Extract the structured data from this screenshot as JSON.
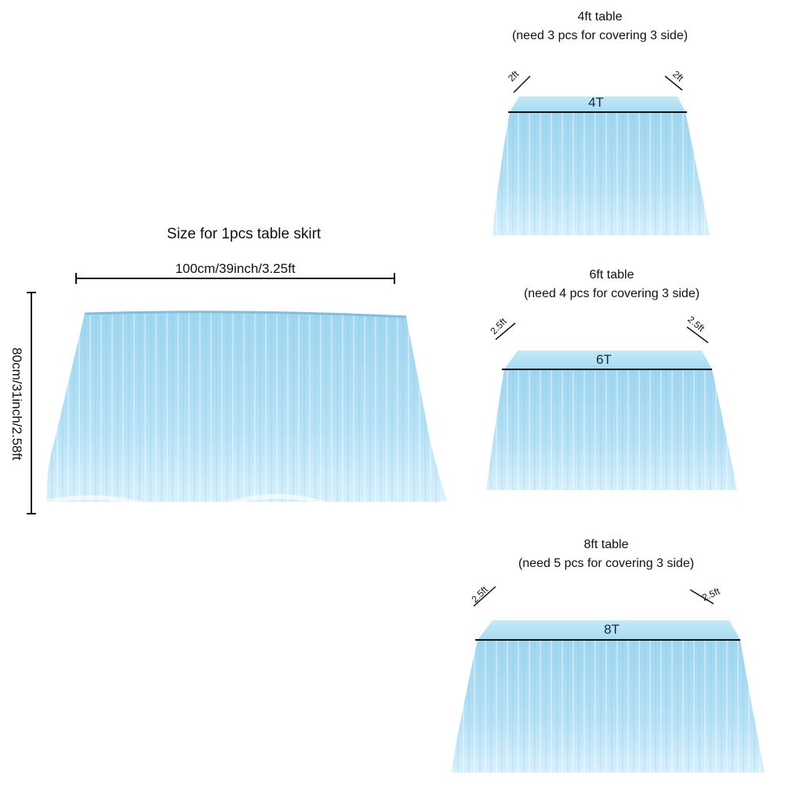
{
  "main": {
    "title": "Size for 1pcs table skirt",
    "width_label": "100cm/39inch/3.25ft",
    "height_label": "80cm/31inch/2.58ft"
  },
  "tables": [
    {
      "title": "4ft table",
      "subtitle": "(need 3 pcs for covering 3 side)",
      "top_label": "4T",
      "left_side": "2ft",
      "right_side": "2ft"
    },
    {
      "title": "6ft table",
      "subtitle": "(need 4 pcs for covering 3 side)",
      "top_label": "6T",
      "left_side": "2.5ft",
      "right_side": "2.5ft"
    },
    {
      "title": "8ft table",
      "subtitle": "(need 5 pcs for covering 3 side)",
      "top_label": "8T",
      "left_side": "2.5ft",
      "right_side": "2.5ft"
    }
  ],
  "colors": {
    "tulle": "#a9dcf2",
    "tulle_light": "#cfeefb",
    "tulle_dark": "#8fcbe6",
    "line": "#111111"
  }
}
